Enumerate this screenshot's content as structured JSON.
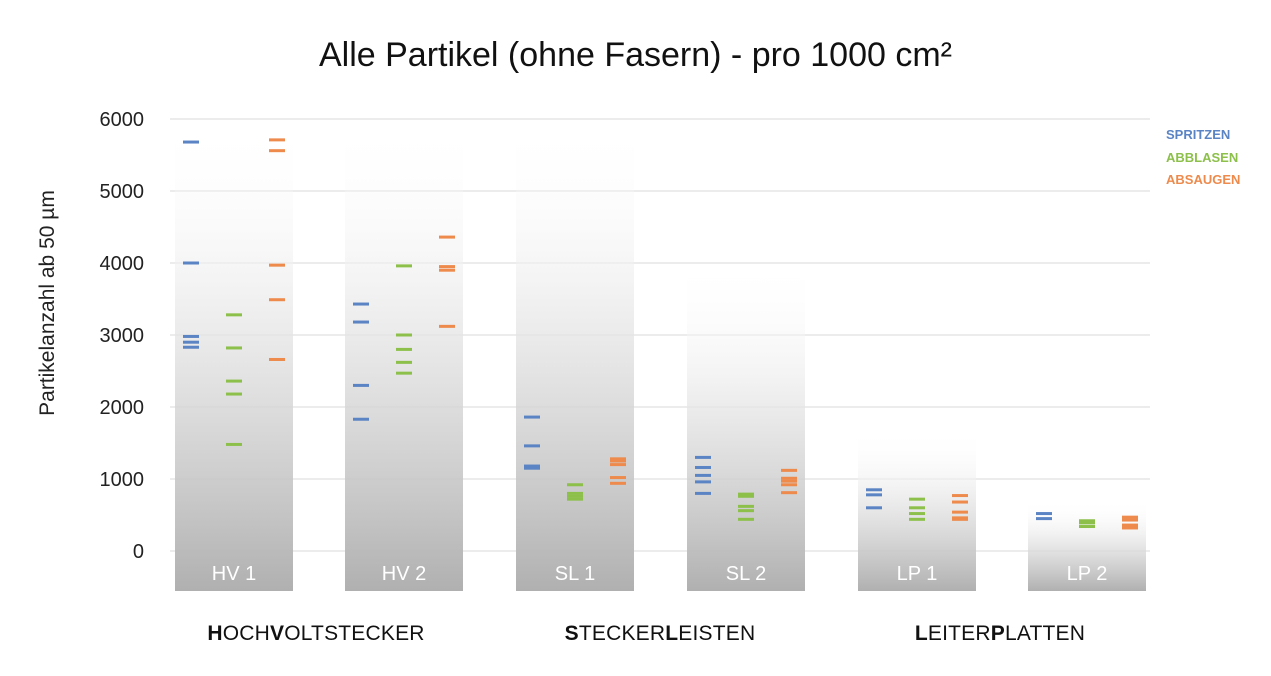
{
  "chart_data": {
    "type": "scatter",
    "title": "Alle Partikel (ohne Fasern) - pro 1000 cm²",
    "ylabel": "Partikelanzahl ab 50 µm",
    "ylim": [
      0,
      6000
    ],
    "yticks": [
      0,
      1000,
      2000,
      3000,
      4000,
      5000,
      6000
    ],
    "grid": true,
    "legend_position": "top-right",
    "categories": [
      "HV 1",
      "HV 2",
      "SL 1",
      "SL 2",
      "LP 1",
      "LP 2"
    ],
    "category_groups": [
      {
        "bold1": "H",
        "rest1": "OCH",
        "bold2": "V",
        "rest2": "OLTSTECKER",
        "categories": [
          "HV 1",
          "HV 2"
        ]
      },
      {
        "bold1": "S",
        "rest1": "TECKER",
        "bold2": "L",
        "rest2": "EISTEN",
        "categories": [
          "SL 1",
          "SL 2"
        ]
      },
      {
        "bold1": "L",
        "rest1": "EITER",
        "bold2": "P",
        "rest2": "LATTEN",
        "categories": [
          "LP 1",
          "LP 2"
        ]
      }
    ],
    "series": [
      {
        "name": "SPRITZEN",
        "color": "#5b84c4",
        "values": [
          [
            5680,
            4000,
            2980,
            2900,
            2830
          ],
          [
            3430,
            3180,
            2300,
            1830
          ],
          [
            1860,
            1460,
            1180,
            1150
          ],
          [
            1300,
            1160,
            1050,
            960,
            800
          ],
          [
            850,
            780,
            600
          ],
          [
            520,
            450
          ]
        ]
      },
      {
        "name": "ABBLASEN",
        "color": "#8cc04a",
        "values": [
          [
            3280,
            2820,
            2360,
            2180,
            1480
          ],
          [
            3960,
            3000,
            2800,
            2620,
            2470
          ],
          [
            920,
            800,
            760,
            720
          ],
          [
            790,
            760,
            620,
            560,
            440
          ],
          [
            720,
            600,
            520,
            440
          ],
          [
            420,
            390,
            340
          ]
        ]
      },
      {
        "name": "ABSAUGEN",
        "color": "#ed8a4c",
        "values": [
          [
            5710,
            5560,
            3970,
            3490,
            2660
          ],
          [
            4360,
            3950,
            3900,
            3120
          ],
          [
            1280,
            1250,
            1200,
            1020,
            940
          ],
          [
            1120,
            1010,
            970,
            920,
            810
          ],
          [
            770,
            680,
            540,
            460,
            440
          ],
          [
            470,
            430,
            360,
            320
          ]
        ]
      }
    ]
  }
}
